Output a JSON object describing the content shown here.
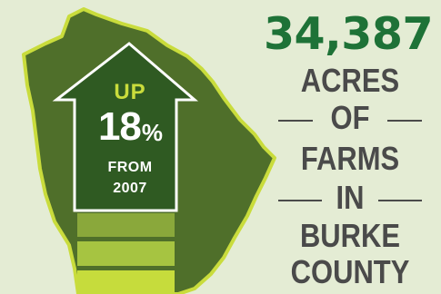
{
  "stat": {
    "number": "34,387",
    "line1": "ACRES",
    "line2": "OF",
    "line3": "FARMS",
    "line4": "IN",
    "line5": "BURKE",
    "line6": "COUNTY"
  },
  "arrow": {
    "up": "UP",
    "percent": "18",
    "percent_sign": "%",
    "from": "FROM",
    "year": "2007"
  },
  "colors": {
    "background": "#e4ecd4",
    "map_fill": "#4f6f2a",
    "map_outline": "#c9dc3c",
    "arrow_fill": "#2f5a22",
    "number_color": "#1e7237",
    "text_color": "#4a4a4a",
    "bar_dark": "#8aa83b",
    "bar_mid": "#a6c441",
    "bar_light": "#c6dc3c"
  }
}
